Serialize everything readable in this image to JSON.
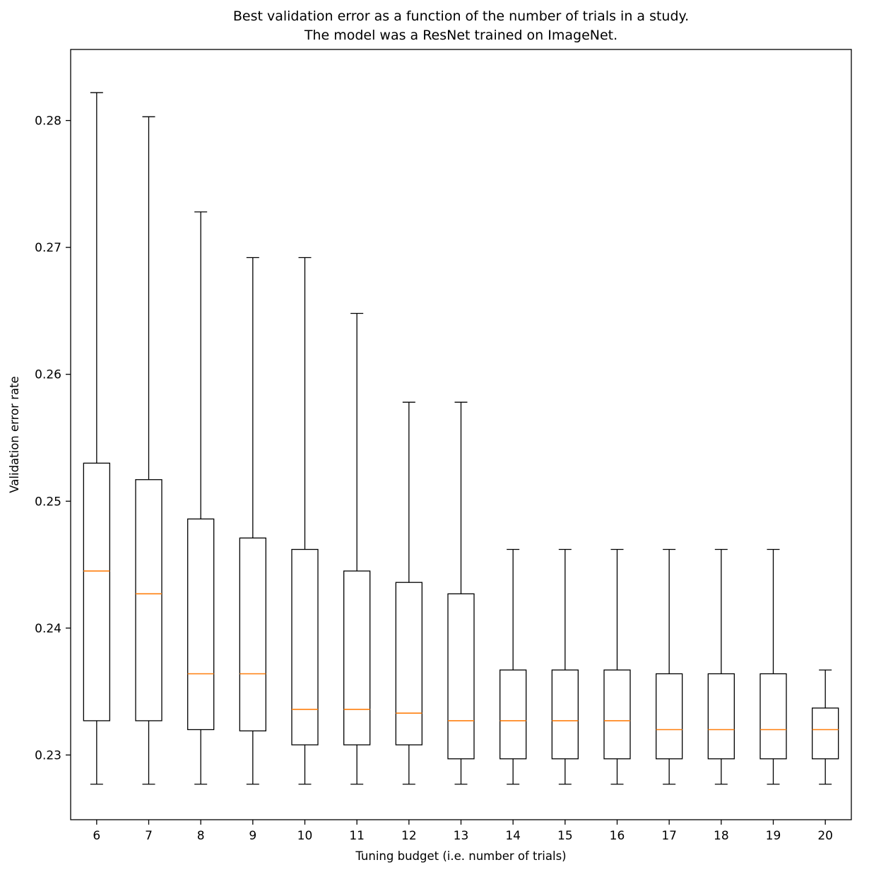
{
  "figure": {
    "background": "#ffffff"
  },
  "chart_data": {
    "type": "boxplot",
    "title_lines": [
      "Best validation error as a function of the number of trials in a study.",
      "The model was a ResNet trained on ImageNet."
    ],
    "xlabel": "Tuning budget (i.e. number of trials)",
    "ylabel": "Validation error rate",
    "categories": [
      "6",
      "7",
      "8",
      "9",
      "10",
      "11",
      "12",
      "13",
      "14",
      "15",
      "16",
      "17",
      "18",
      "19",
      "20"
    ],
    "yticks": [
      0.23,
      0.24,
      0.25,
      0.26,
      0.27,
      0.28
    ],
    "ylim": [
      0.2249,
      0.2856
    ],
    "grid": false,
    "legend": "none",
    "colors": {
      "box_edge": "#000000",
      "median": "#ff7f0e",
      "background": "#ffffff"
    },
    "boxes": [
      {
        "x": 6,
        "whislo": 0.2277,
        "q1": 0.2327,
        "med": 0.2445,
        "q3": 0.253,
        "whishi": 0.2822
      },
      {
        "x": 7,
        "whislo": 0.2277,
        "q1": 0.2327,
        "med": 0.2427,
        "q3": 0.2517,
        "whishi": 0.2803
      },
      {
        "x": 8,
        "whislo": 0.2277,
        "q1": 0.232,
        "med": 0.2364,
        "q3": 0.2486,
        "whishi": 0.2728
      },
      {
        "x": 9,
        "whislo": 0.2277,
        "q1": 0.2319,
        "med": 0.2364,
        "q3": 0.2471,
        "whishi": 0.2692
      },
      {
        "x": 10,
        "whislo": 0.2277,
        "q1": 0.2308,
        "med": 0.2336,
        "q3": 0.2462,
        "whishi": 0.2692
      },
      {
        "x": 11,
        "whislo": 0.2277,
        "q1": 0.2308,
        "med": 0.2336,
        "q3": 0.2445,
        "whishi": 0.2648
      },
      {
        "x": 12,
        "whislo": 0.2277,
        "q1": 0.2308,
        "med": 0.2333,
        "q3": 0.2436,
        "whishi": 0.2578
      },
      {
        "x": 13,
        "whislo": 0.2277,
        "q1": 0.2297,
        "med": 0.2327,
        "q3": 0.2427,
        "whishi": 0.2578
      },
      {
        "x": 14,
        "whislo": 0.2277,
        "q1": 0.2297,
        "med": 0.2327,
        "q3": 0.2367,
        "whishi": 0.2462
      },
      {
        "x": 15,
        "whislo": 0.2277,
        "q1": 0.2297,
        "med": 0.2327,
        "q3": 0.2367,
        "whishi": 0.2462
      },
      {
        "x": 16,
        "whislo": 0.2277,
        "q1": 0.2297,
        "med": 0.2327,
        "q3": 0.2367,
        "whishi": 0.2462
      },
      {
        "x": 17,
        "whislo": 0.2277,
        "q1": 0.2297,
        "med": 0.232,
        "q3": 0.2364,
        "whishi": 0.2462
      },
      {
        "x": 18,
        "whislo": 0.2277,
        "q1": 0.2297,
        "med": 0.232,
        "q3": 0.2364,
        "whishi": 0.2462
      },
      {
        "x": 19,
        "whislo": 0.2277,
        "q1": 0.2297,
        "med": 0.232,
        "q3": 0.2364,
        "whishi": 0.2462
      },
      {
        "x": 20,
        "whislo": 0.2277,
        "q1": 0.2297,
        "med": 0.232,
        "q3": 0.2337,
        "whishi": 0.2367
      }
    ]
  }
}
